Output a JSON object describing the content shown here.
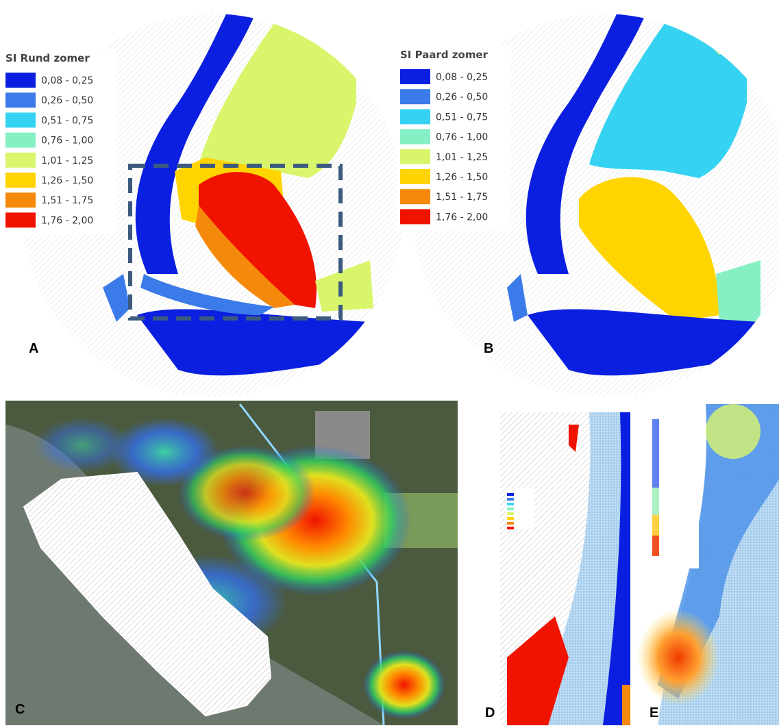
{
  "panels": {
    "a": {
      "label": "A",
      "legend": {
        "title": "SI Rund zomer",
        "items": [
          {
            "label": "0,08 - 0,25",
            "color": "#0a1fe0"
          },
          {
            "label": "0,26 - 0,50",
            "color": "#3b7be9"
          },
          {
            "label": "0,51 - 0,75",
            "color": "#35d3f1"
          },
          {
            "label": "0,76 - 1,00",
            "color": "#86efc3"
          },
          {
            "label": "1,01 - 1,25",
            "color": "#d9f56c"
          },
          {
            "label": "1,26 - 1,50",
            "color": "#ffd400"
          },
          {
            "label": "1,51 - 1,75",
            "color": "#f5890c"
          },
          {
            "label": "1,76 - 2,00",
            "color": "#f01300"
          }
        ]
      }
    },
    "b": {
      "label": "B",
      "legend": {
        "title": "SI Paard zomer",
        "items": [
          {
            "label": "0,08 - 0,25",
            "color": "#0a1fe0"
          },
          {
            "label": "0,26 - 0,50",
            "color": "#3b7be9"
          },
          {
            "label": "0,51 - 0,75",
            "color": "#35d3f1"
          },
          {
            "label": "0,76 - 1,00",
            "color": "#86efc3"
          },
          {
            "label": "1,01 - 1,25",
            "color": "#d9f56c"
          },
          {
            "label": "1,26 - 1,50",
            "color": "#ffd400"
          },
          {
            "label": "1,51 - 1,75",
            "color": "#f5890c"
          },
          {
            "label": "1,76 - 2,00",
            "color": "#f01300"
          }
        ]
      }
    },
    "c": {
      "label": "C"
    },
    "d": {
      "label": "D"
    },
    "e": {
      "label": "E"
    }
  }
}
